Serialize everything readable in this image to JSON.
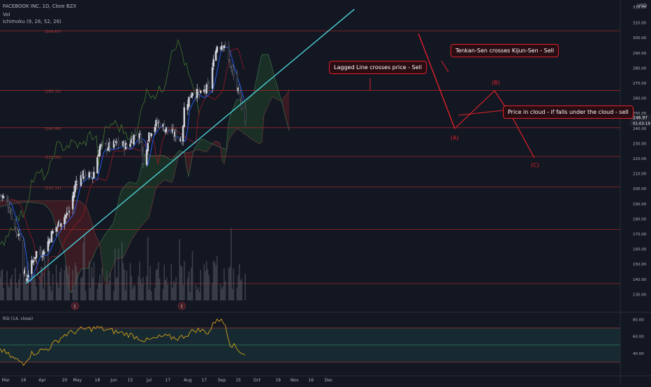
{
  "header": {
    "symbol": "FACEBOOK INC, 1D, Cboe BZX",
    "vol_label": "Vol",
    "ichimoku_label": "Ichimoku (9, 26, 52, 26)",
    "currency": "USD"
  },
  "annotations": {
    "callout_lagged": "Lagged Line crosses price - Sell",
    "callout_tenkan": "Tenkan-Sen crosses Kijun-Sen - Sell",
    "callout_cloud": "Price in cloud - if falls under the cloud - sell",
    "wave_a": "(A)",
    "wave_b": "(B)",
    "wave_c": "(C)"
  },
  "colors": {
    "background": "#131722",
    "up": "#d1d4dc",
    "down": "#6a6d78",
    "trendline": "#4dd0d6",
    "annotation": "#e0202a",
    "tenkan": "#2962ff",
    "kijun": "#8b1a24",
    "lagging": "#3d6b2e",
    "cloud_bull": "#1e3a2a",
    "cloud_bear": "#4a1e24",
    "rsi": "#d4a017",
    "rsi_band": "#1b3a3f"
  },
  "chart_data": {
    "type": "candlestick",
    "title": "FACEBOOK INC, 1D, Cboe BZX",
    "x_ticks": [
      "Mar",
      "16",
      "Apr",
      "20",
      "May",
      "18",
      "Jun",
      "15",
      "Jul",
      "17",
      "Aug",
      "17",
      "Sep",
      "15",
      "Oct",
      "19",
      "Nov",
      "16",
      "Dec"
    ],
    "y_ticks": [
      130,
      140,
      150,
      160,
      170,
      180,
      190,
      200,
      210,
      220,
      230,
      240,
      250,
      260,
      270,
      280,
      290,
      300,
      310
    ],
    "ylim": [
      126,
      320
    ],
    "last_price_label": "246.97",
    "countdown_label": "01:03:19",
    "top_price_label": "318.00",
    "horizontal_levels": [
      {
        "label": "304.67",
        "value": 304.67
      },
      {
        "label": "265.10",
        "value": 265.1
      },
      {
        "label": "240.46",
        "value": 240.46
      },
      {
        "label": "221.39",
        "value": 221.39
      },
      {
        "label": "201.11",
        "value": 201.11
      },
      {
        "label": "",
        "value": 173
      },
      {
        "label": "",
        "value": 137.1
      }
    ],
    "close_path": [
      {
        "date": "2020-02-25",
        "close": 196
      },
      {
        "date": "2020-03-02",
        "close": 192
      },
      {
        "date": "2020-03-06",
        "close": 182
      },
      {
        "date": "2020-03-10",
        "close": 172
      },
      {
        "date": "2020-03-13",
        "close": 168
      },
      {
        "date": "2020-03-16",
        "close": 147
      },
      {
        "date": "2020-03-18",
        "close": 140
      },
      {
        "date": "2020-03-23",
        "close": 150
      },
      {
        "date": "2020-03-27",
        "close": 158
      },
      {
        "date": "2020-04-02",
        "close": 158
      },
      {
        "date": "2020-04-09",
        "close": 170
      },
      {
        "date": "2020-04-16",
        "close": 178
      },
      {
        "date": "2020-04-24",
        "close": 185
      },
      {
        "date": "2020-04-30",
        "close": 205
      },
      {
        "date": "2020-05-07",
        "close": 210
      },
      {
        "date": "2020-05-14",
        "close": 208
      },
      {
        "date": "2020-05-20",
        "close": 228
      },
      {
        "date": "2020-05-28",
        "close": 228
      },
      {
        "date": "2020-06-05",
        "close": 230
      },
      {
        "date": "2020-06-12",
        "close": 228
      },
      {
        "date": "2020-06-19",
        "close": 236
      },
      {
        "date": "2020-06-24",
        "close": 234
      },
      {
        "date": "2020-06-26",
        "close": 216
      },
      {
        "date": "2020-07-01",
        "close": 237
      },
      {
        "date": "2020-07-08",
        "close": 244
      },
      {
        "date": "2020-07-15",
        "close": 240
      },
      {
        "date": "2020-07-22",
        "close": 236
      },
      {
        "date": "2020-07-29",
        "close": 233
      },
      {
        "date": "2020-07-31",
        "close": 253
      },
      {
        "date": "2020-08-07",
        "close": 265
      },
      {
        "date": "2020-08-14",
        "close": 262
      },
      {
        "date": "2020-08-21",
        "close": 268
      },
      {
        "date": "2020-08-26",
        "close": 288
      },
      {
        "date": "2020-08-28",
        "close": 295
      },
      {
        "date": "2020-09-03",
        "close": 296
      },
      {
        "date": "2020-09-08",
        "close": 282
      },
      {
        "date": "2020-09-14",
        "close": 267
      },
      {
        "date": "2020-09-18",
        "close": 255
      },
      {
        "date": "2020-09-21",
        "close": 247
      }
    ],
    "trendline": {
      "from": [
        "2020-03-18",
        137
      ],
      "to": [
        "2020-12-23",
        319
      ]
    },
    "earnings_markers": [
      {
        "label": "E",
        "date": "2020-04-29"
      },
      {
        "label": "E",
        "date": "2020-07-29"
      }
    ],
    "rsi": {
      "label": "RSI (14, close)",
      "levels": [
        70,
        50,
        30
      ],
      "y_ticks": [
        40,
        60,
        80
      ],
      "ylim": [
        22,
        86
      ],
      "values": [
        {
          "date": "2020-02-25",
          "value": 45
        },
        {
          "date": "2020-03-09",
          "value": 33
        },
        {
          "date": "2020-03-16",
          "value": 29
        },
        {
          "date": "2020-03-23",
          "value": 40
        },
        {
          "date": "2020-04-06",
          "value": 46
        },
        {
          "date": "2020-04-20",
          "value": 62
        },
        {
          "date": "2020-05-04",
          "value": 68
        },
        {
          "date": "2020-05-18",
          "value": 70
        },
        {
          "date": "2020-06-01",
          "value": 66
        },
        {
          "date": "2020-06-15",
          "value": 62
        },
        {
          "date": "2020-06-29",
          "value": 55
        },
        {
          "date": "2020-07-13",
          "value": 60
        },
        {
          "date": "2020-07-27",
          "value": 58
        },
        {
          "date": "2020-08-10",
          "value": 68
        },
        {
          "date": "2020-08-21",
          "value": 65
        },
        {
          "date": "2020-08-28",
          "value": 82
        },
        {
          "date": "2020-09-04",
          "value": 74
        },
        {
          "date": "2020-09-08",
          "value": 52
        },
        {
          "date": "2020-09-14",
          "value": 46
        },
        {
          "date": "2020-09-21",
          "value": 38
        }
      ]
    }
  }
}
